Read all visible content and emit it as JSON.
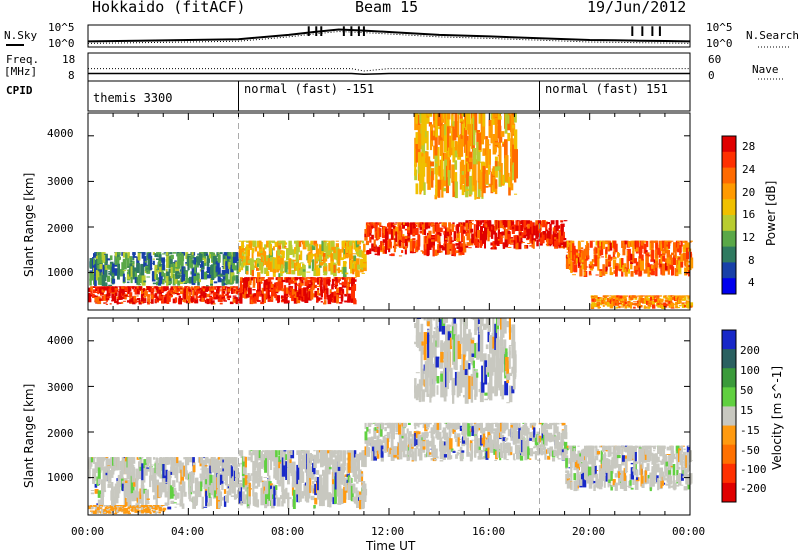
{
  "header": {
    "station": "Hokkaido (fitACF)",
    "beam": "Beam 15",
    "date": "19/Jun/2012"
  },
  "noise_panel": {
    "left_label": "N.Sky",
    "right_label": "N.Search",
    "left_ticks": [
      "10^5",
      "10^0"
    ],
    "right_ticks": [
      "10^5",
      "10^0"
    ]
  },
  "freq_panel": {
    "left_label_1": "Freq.",
    "left_label_2": "[MHz]",
    "right_label": "Nave",
    "left_ticks": [
      "18",
      "8"
    ],
    "right_ticks": [
      "60",
      "0"
    ]
  },
  "cpid_panel": {
    "label": "CPID",
    "segments": [
      "themis 3300",
      "normal (fast) -151",
      "normal (fast) 151"
    ]
  },
  "x_axis": {
    "label": "Time UT",
    "ticks": [
      "00:00",
      "04:00",
      "08:00",
      "12:00",
      "16:00",
      "20:00",
      "00:00"
    ]
  },
  "y_axis": {
    "label": "Slant Range [km]",
    "ticks": [
      "4000",
      "3000",
      "2000",
      "1000"
    ]
  },
  "power_colorbar": {
    "label": "Power [dB]",
    "ticks": [
      "28",
      "24",
      "20",
      "16",
      "12",
      "8",
      "4"
    ],
    "colors": [
      "#e00000",
      "#ff3000",
      "#ff6a00",
      "#ff9a00",
      "#f0c000",
      "#b8cc30",
      "#5aa848",
      "#2f7a60",
      "#1840a8",
      "#0000ee"
    ]
  },
  "velocity_colorbar": {
    "label": "Velocity [m s^-1]",
    "ticks": [
      "200",
      "100",
      "50",
      "15",
      "-15",
      "-50",
      "-100",
      "-200"
    ],
    "colors": [
      "#1828c8",
      "#2a6060",
      "#3a9a3a",
      "#60d040",
      "#c8c8c0",
      "#ff9a10",
      "#ff7000",
      "#ff3000",
      "#e00000"
    ]
  },
  "chart_data": [
    {
      "type": "line",
      "title": "Hokkaido (fitACF)  Beam 15  19/Jun/2012",
      "ylabel": "N.Sky / N.Search",
      "x_hours": [
        0,
        2,
        4,
        6,
        8,
        9,
        10,
        11,
        12,
        14,
        16,
        18,
        20,
        21,
        22,
        23,
        24
      ],
      "series": [
        {
          "name": "N.Sky",
          "values": [
            1.0,
            1.2,
            1.4,
            1.6,
            2.8,
            3.6,
            4.3,
            4.0,
            3.6,
            2.8,
            2.4,
            1.9,
            1.4,
            1.3,
            1.2,
            1.1,
            1.0
          ]
        }
      ],
      "ylim": [
        0,
        5
      ]
    },
    {
      "type": "line",
      "ylabel": "Freq. [MHz] / Nave",
      "x_hours": [
        0,
        4,
        8,
        10.5,
        11,
        12,
        16,
        20,
        24
      ],
      "series": [
        {
          "name": "Freq.",
          "values": [
            10.3,
            10.3,
            10.3,
            10.3,
            10.0,
            10.3,
            10.3,
            10.3,
            10.3
          ]
        },
        {
          "name": "Nave",
          "values": [
            26,
            26,
            26,
            26,
            20,
            26,
            26,
            26,
            26
          ]
        }
      ],
      "ylim": [
        8,
        18
      ]
    },
    {
      "type": "heatmap",
      "xlabel": "Time UT",
      "ylabel": "Slant Range [km]",
      "colorbar": "Power [dB]",
      "xlim_hours": [
        0,
        24
      ],
      "ylim_km": [
        180,
        4500
      ],
      "bands": [
        {
          "t0": 0,
          "t1": 6,
          "r0": 300,
          "r1": 700,
          "dB": 28
        },
        {
          "t0": 0,
          "t1": 6,
          "r0": 700,
          "r1": 1450,
          "dB": 10
        },
        {
          "t0": 6,
          "t1": 10.6,
          "r0": 300,
          "r1": 900,
          "dB": 28
        },
        {
          "t0": 6,
          "t1": 11,
          "r0": 900,
          "r1": 1700,
          "dB": 18
        },
        {
          "t0": 11,
          "t1": 15,
          "r0": 1350,
          "r1": 2100,
          "dB": 27
        },
        {
          "t0": 15,
          "t1": 19,
          "r0": 1500,
          "r1": 2150,
          "dB": 28
        },
        {
          "t0": 19,
          "t1": 24,
          "r0": 900,
          "r1": 1700,
          "dB": 24
        },
        {
          "t0": 20,
          "t1": 24,
          "r0": 200,
          "r1": 500,
          "dB": 22
        },
        {
          "t0": 13,
          "t1": 17,
          "r0": 2600,
          "r1": 4500,
          "dB": 20
        }
      ]
    },
    {
      "type": "heatmap",
      "xlabel": "Time UT",
      "ylabel": "Slant Range [km]",
      "colorbar": "Velocity [m s^-1]",
      "xlim_hours": [
        0,
        24
      ],
      "ylim_km": [
        180,
        4500
      ],
      "bands": [
        {
          "t0": 0,
          "t1": 6,
          "r0": 300,
          "r1": 1450,
          "v": 0
        },
        {
          "t0": 6,
          "t1": 11,
          "r0": 300,
          "r1": 1600,
          "v": 0
        },
        {
          "t0": 11,
          "t1": 19,
          "r0": 1350,
          "r1": 2200,
          "v": 0
        },
        {
          "t0": 19,
          "t1": 24,
          "r0": 700,
          "r1": 1700,
          "v": 0
        },
        {
          "t0": 13,
          "t1": 17,
          "r0": 2600,
          "r1": 4500,
          "v": 0
        },
        {
          "t0": 0,
          "t1": 3,
          "r0": 200,
          "r1": 400,
          "v": -50
        }
      ]
    }
  ]
}
